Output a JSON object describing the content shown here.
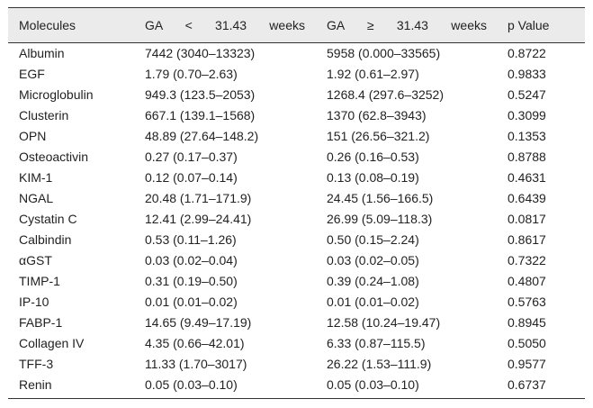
{
  "table": {
    "header": [
      "Molecules",
      "GA < 31.43 weeks",
      "GA ≥ 31.43 weeks",
      "p Value"
    ],
    "rows": [
      [
        "Albumin",
        "7442 (3040–13323)",
        "5958 (0.000–33565)",
        "0.8722"
      ],
      [
        "EGF",
        "1.79 (0.70–2.63)",
        "1.92 (0.61–2.97)",
        "0.9833"
      ],
      [
        "Microglobulin",
        "949.3 (123.5–2053)",
        "1268.4 (297.6–3252)",
        "0.5247"
      ],
      [
        "Clusterin",
        "667.1 (139.1–1568)",
        "1370 (62.8–3943)",
        "0.3099"
      ],
      [
        "OPN",
        "48.89 (27.64–148.2)",
        "151 (26.56–321.2)",
        "0.1353"
      ],
      [
        "Osteoactivin",
        "0.27 (0.17–0.37)",
        "0.26 (0.16–0.53)",
        "0.8788"
      ],
      [
        "KIM-1",
        "0.12 (0.07–0.14)",
        "0.13 (0.08–0.19)",
        "0.4631"
      ],
      [
        "NGAL",
        "20.48 (1.71–171.9)",
        "24.45 (1.56–166.5)",
        "0.6439"
      ],
      [
        "Cystatin C",
        "12.41 (2.99–24.41)",
        "26.99 (5.09–118.3)",
        "0.0817"
      ],
      [
        "Calbindin",
        "0.53 (0.11–1.26)",
        "0.50 (0.15–2.24)",
        "0.8617"
      ],
      [
        "αGST",
        "0.03 (0.02–0.04)",
        "0.03 (0.02–0.05)",
        "0.7322"
      ],
      [
        "TIMP-1",
        "0.31 (0.19–0.50)",
        "0.39 (0.24–1.08)",
        "0.4807"
      ],
      [
        "IP-10",
        "0.01 (0.01–0.02)",
        "0.01 (0.01–0.02)",
        "0.5763"
      ],
      [
        "FABP-1",
        "14.65 (9.49–17.19)",
        "12.58 (10.24–19.47)",
        "0.8945"
      ],
      [
        "Collagen IV",
        "4.35 (0.66–42.01)",
        "6.33 (0.87–115.5)",
        "0.5050"
      ],
      [
        "TFF-3",
        "11.33 (1.70–3017)",
        "26.22 (1.53–111.9)",
        "0.9577"
      ],
      [
        "Renin",
        "0.05 (0.03–0.10)",
        "0.05 (0.03–0.10)",
        "0.6737"
      ]
    ]
  }
}
